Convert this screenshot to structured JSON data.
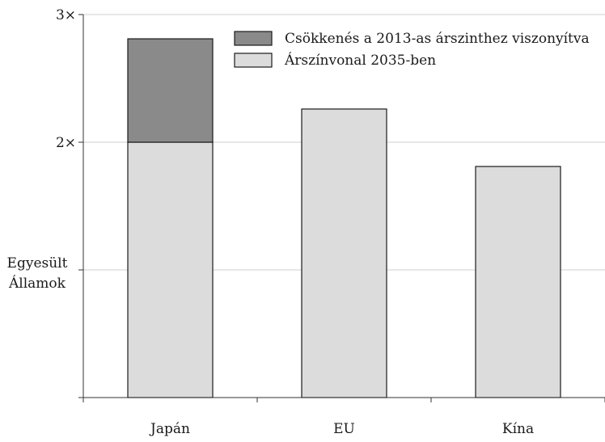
{
  "chart_data": {
    "type": "bar",
    "stacked": true,
    "categories": [
      "Japán",
      "EU",
      "Kína"
    ],
    "series": [
      {
        "name": "Árszínvonal 2035-ben",
        "values": [
          2.0,
          2.26,
          1.81
        ],
        "color": "#dcdcdc"
      },
      {
        "name": "Csökkenés a 2013-as árszinthez viszonyítva",
        "values": [
          0.81,
          0,
          0
        ],
        "color": "#8a8a8a"
      }
    ],
    "ylim": [
      0,
      3
    ],
    "yticks": [
      {
        "value": 3,
        "label": "3×"
      },
      {
        "value": 2,
        "label": "2×"
      },
      {
        "value": 1,
        "label": ""
      },
      {
        "value": 0,
        "label": ""
      }
    ],
    "reference_label": {
      "value": 1,
      "lines": [
        "Egyesült",
        "Államok"
      ]
    },
    "grid": true,
    "legend_position": "top-right",
    "title": "",
    "xlabel": "",
    "ylabel": ""
  }
}
